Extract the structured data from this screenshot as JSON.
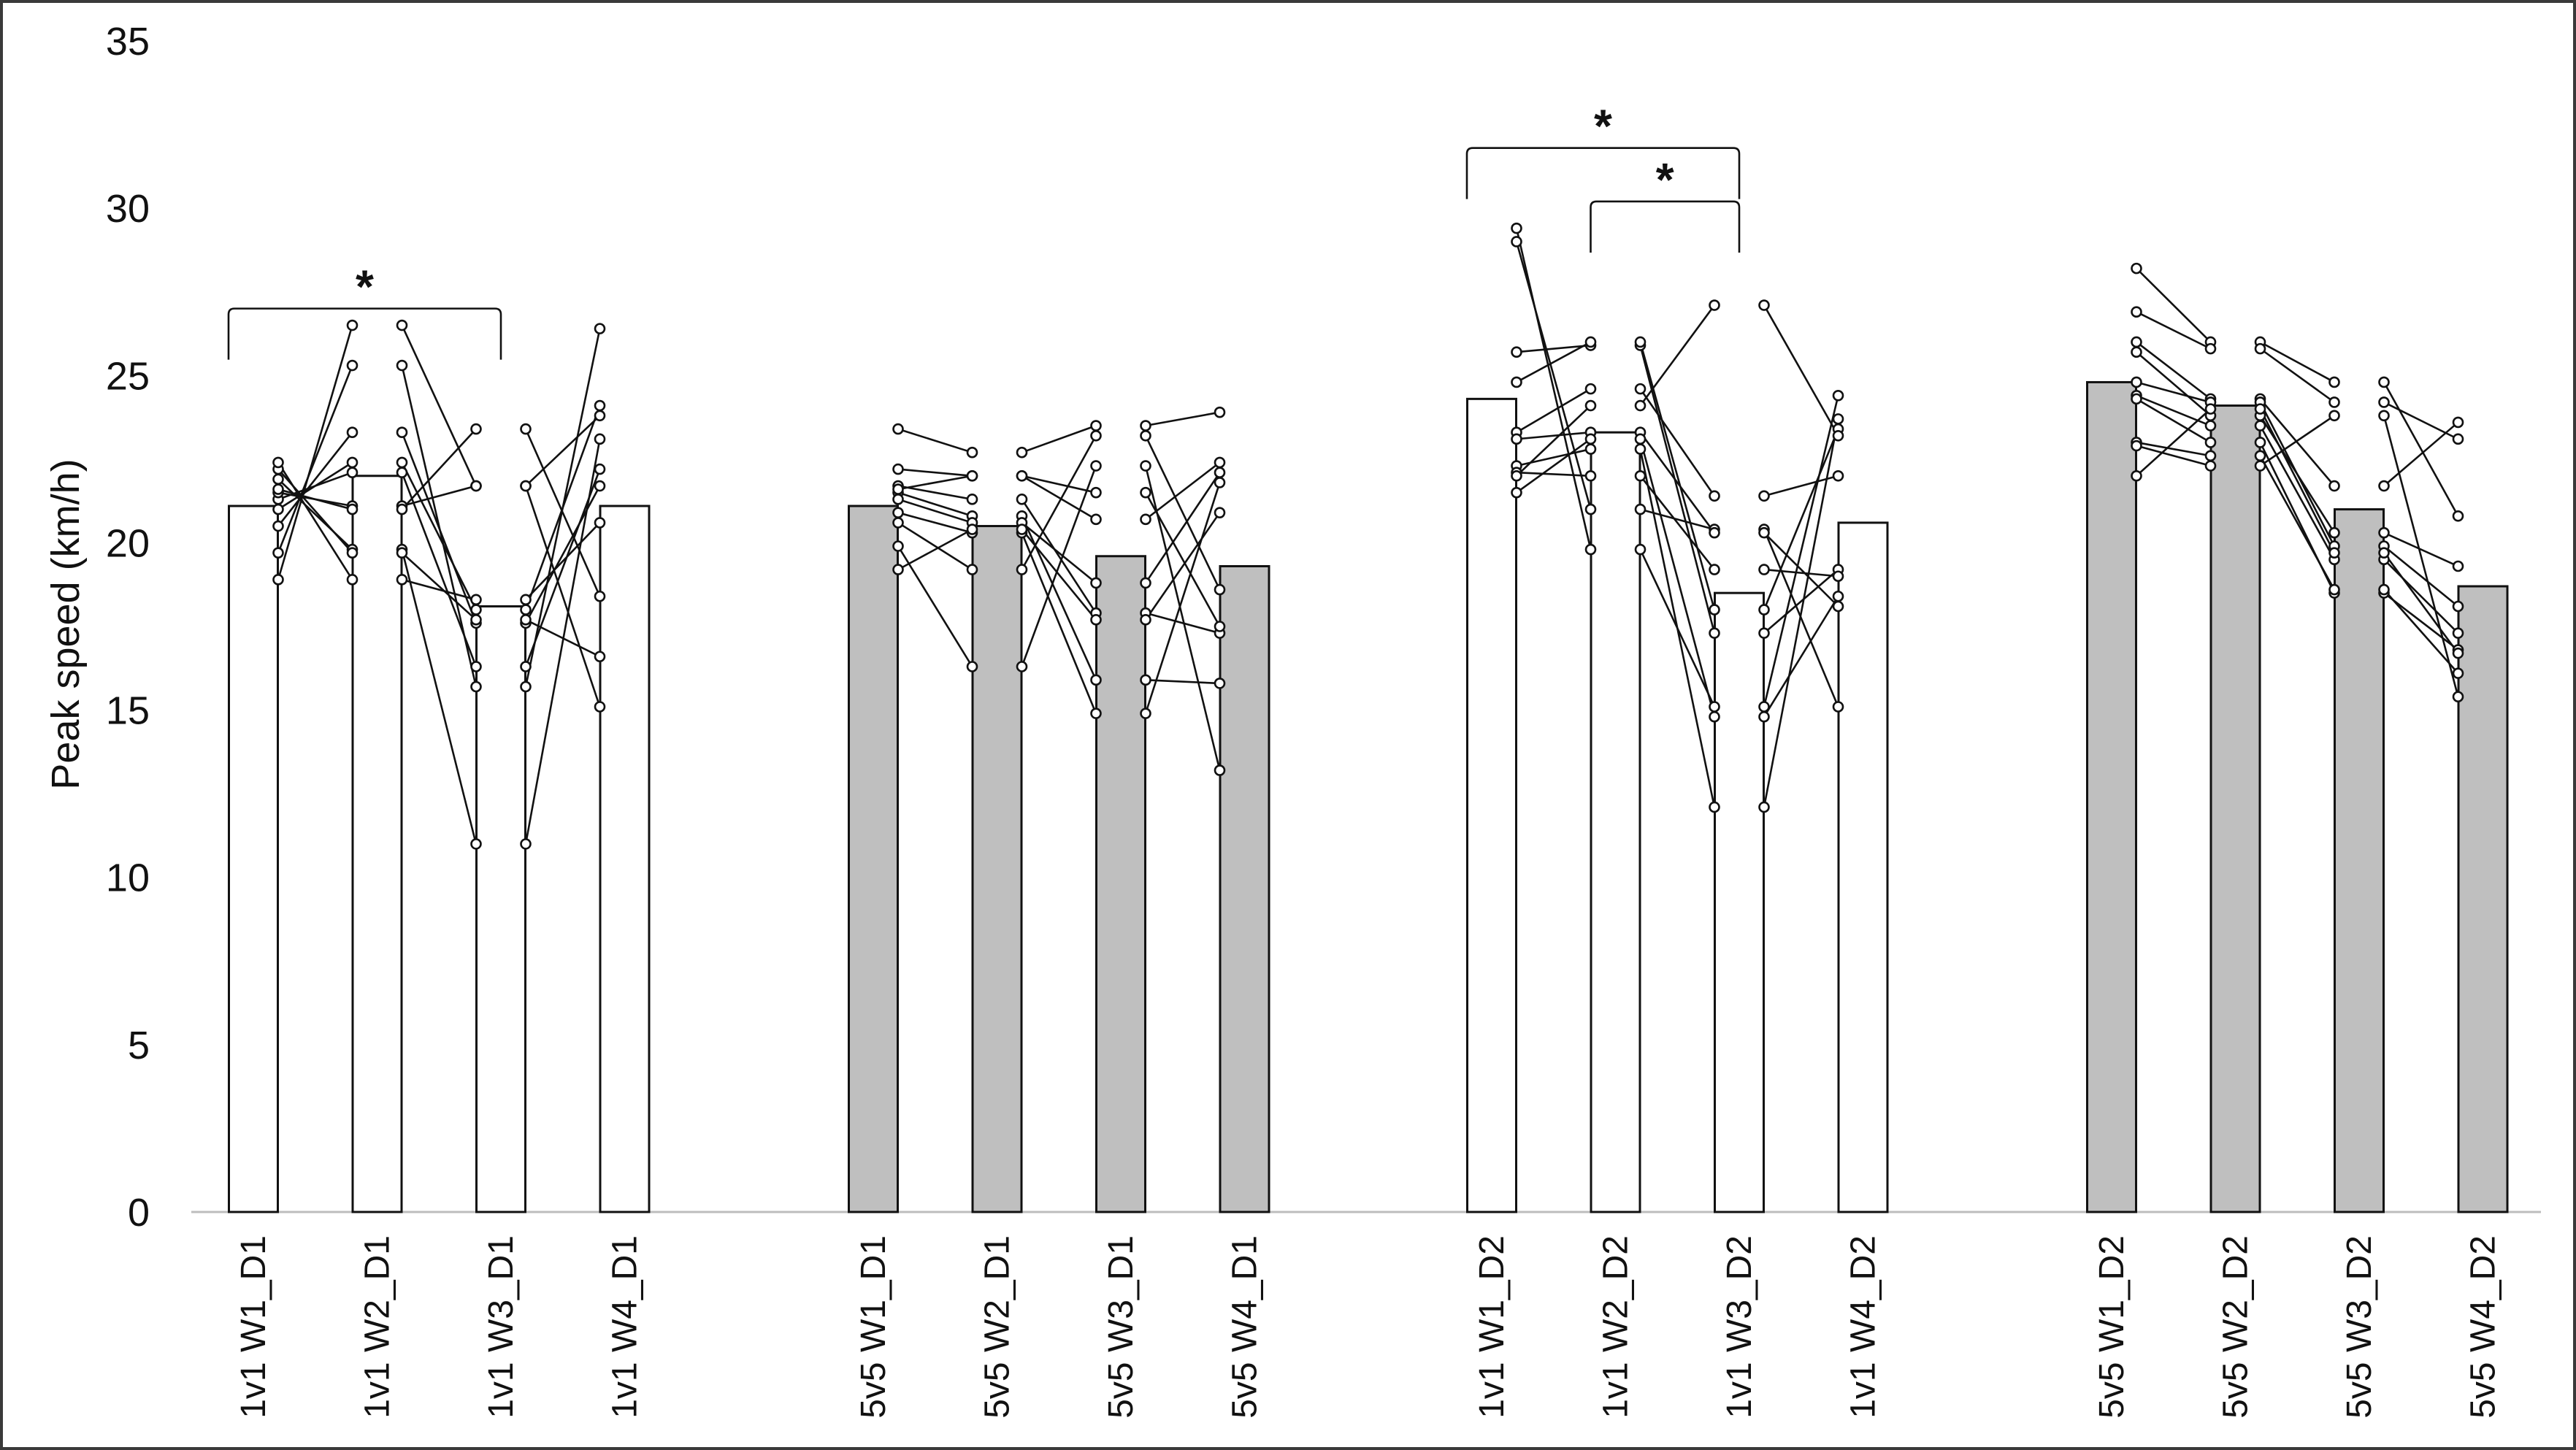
{
  "chart_data": {
    "type": "bar",
    "title": "",
    "ylabel": "Peak speed (km/h)",
    "xlabel": "",
    "ylim": [
      0,
      35
    ],
    "yticks": [
      0,
      5,
      10,
      15,
      20,
      25,
      30,
      35
    ],
    "grid": false,
    "colors": {
      "1v1": "#ffffff",
      "5v5": "#bfbfbf",
      "stroke": "#111111"
    },
    "groups": [
      {
        "name": "1v1 D1",
        "style": "1v1",
        "bars": [
          {
            "label": "1v1 W1_D1",
            "value": 21.1,
            "points": [
              18.9,
              19.7,
              20.5,
              21.0,
              21.3,
              21.5,
              21.6,
              21.9,
              22.2,
              22.4
            ]
          },
          {
            "label": "1v1 W2_D1",
            "value": 22.0,
            "points": [
              26.5,
              25.3,
              23.3,
              22.4,
              22.1,
              21.1,
              21.0,
              19.8,
              19.7,
              18.9
            ]
          },
          {
            "label": "1v1 W3_D1",
            "value": 18.1,
            "points": [
              21.7,
              15.7,
              17.6,
              18.0,
              16.3,
              21.7,
              23.4,
              11.0,
              17.7,
              18.3
            ]
          },
          {
            "label": "1v1 W4_D1",
            "value": 21.1,
            "points": [
              15.1,
              26.4,
              21.7,
              24.1,
              22.2,
              23.8,
              18.4,
              23.1,
              16.6,
              20.6
            ]
          }
        ]
      },
      {
        "name": "5v5 D1",
        "style": "5v5",
        "bars": [
          {
            "label": "5v5 W1_D1",
            "value": 21.1,
            "points": [
              23.4,
              22.2,
              21.7,
              21.5,
              21.3,
              20.9,
              20.6,
              19.9,
              19.2,
              21.6
            ]
          },
          {
            "label": "5v5 W2_D1",
            "value": 20.5,
            "points": [
              22.7,
              22.0,
              21.3,
              20.8,
              20.6,
              20.3,
              19.2,
              16.3,
              20.4,
              22.0
            ]
          },
          {
            "label": "5v5 W3_D1",
            "value": 19.6,
            "points": [
              23.5,
              20.7,
              17.9,
              15.9,
              18.8,
              14.9,
              23.2,
              22.3,
              17.7,
              21.5
            ]
          },
          {
            "label": "5v5 W4_D1",
            "value": 19.3,
            "points": [
              23.9,
              22.4,
              17.3,
              15.8,
              22.1,
              21.8,
              18.6,
              13.2,
              20.9,
              17.5
            ]
          }
        ]
      },
      {
        "name": "1v1 D2",
        "style": "1v1",
        "bars": [
          {
            "label": "1v1 W1_D2",
            "value": 24.3,
            "points": [
              29.4,
              29.0,
              25.7,
              24.8,
              23.3,
              23.1,
              22.3,
              22.1,
              22.0,
              21.5
            ]
          },
          {
            "label": "1v1 W2_D2",
            "value": 23.3,
            "points": [
              19.8,
              21.0,
              25.9,
              26.0,
              24.6,
              23.3,
              22.8,
              22.0,
              24.1,
              23.1
            ]
          },
          {
            "label": "1v1 W3_D2",
            "value": 18.5,
            "points": [
              15.1,
              20.4,
              17.3,
              18.0,
              21.4,
              20.3,
              12.1,
              19.2,
              27.1,
              14.8
            ]
          },
          {
            "label": "1v1 W4_D2",
            "value": 20.6,
            "points": [
              24.4,
              15.1,
              19.2,
              23.4,
              22.0,
              18.1,
              23.7,
              19.0,
              23.2,
              18.4
            ]
          }
        ]
      },
      {
        "name": "5v5 D2",
        "style": "5v5",
        "bars": [
          {
            "label": "5v5 W1_D2",
            "value": 24.8,
            "points": [
              28.2,
              26.9,
              26.0,
              25.7,
              24.8,
              24.4,
              24.3,
              23.0,
              22.9,
              22.0
            ]
          },
          {
            "label": "5v5 W2_D2",
            "value": 24.1,
            "points": [
              26.0,
              25.8,
              24.3,
              23.8,
              24.2,
              23.5,
              23.0,
              22.6,
              22.3,
              24.0
            ]
          },
          {
            "label": "5v5 W3_D2",
            "value": 21.0,
            "points": [
              24.8,
              24.2,
              21.7,
              20.3,
              19.9,
              19.5,
              18.5,
              18.6,
              23.8,
              19.7
            ]
          },
          {
            "label": "5v5 W4_D2",
            "value": 18.7,
            "points": [
              20.8,
              23.1,
              23.6,
              19.3,
              18.1,
              17.3,
              16.8,
              16.1,
              15.4,
              16.7
            ]
          }
        ]
      }
    ],
    "annotations": [
      {
        "text": "*",
        "from": "1v1 W1_D1",
        "to": "1v1 W3_D1",
        "y": 27.0
      },
      {
        "text": "*",
        "from": "1v1 W1_D2",
        "to": "1v1 W3_D2",
        "y": 31.8
      },
      {
        "text": "*",
        "from": "1v1 W2_D2",
        "to": "1v1 W3_D2",
        "y": 30.2
      }
    ]
  }
}
